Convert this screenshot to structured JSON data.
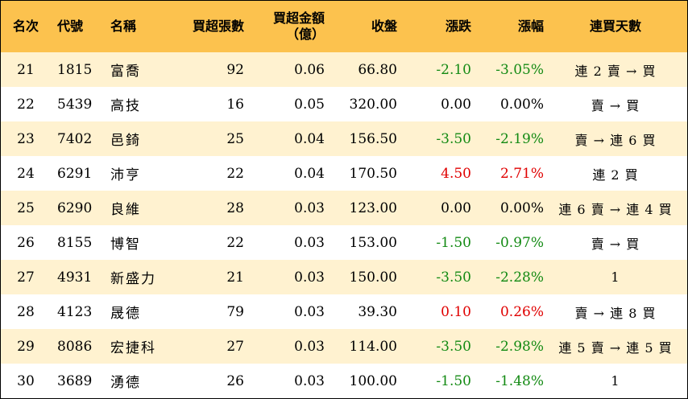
{
  "headers": {
    "rank": "名次",
    "code": "代號",
    "name": "名稱",
    "vol": "買超張數",
    "amt_line1": "買超金額",
    "amt_line2": "（億）",
    "close": "收盤",
    "chg": "漲跌",
    "pct": "漲幅",
    "days": "連買天數"
  },
  "colors": {
    "header_bg": "#fcc24e",
    "odd_row_bg": "#fff2d0",
    "up": "#e00000",
    "down": "#138a13"
  },
  "rows": [
    {
      "rank": "21",
      "code": "1815",
      "name": "富喬",
      "vol": "92",
      "amt": "0.06",
      "close": "66.80",
      "chg": "-2.10",
      "pct": "-3.05%",
      "days": "連 2 賣 → 買",
      "dir": "down"
    },
    {
      "rank": "22",
      "code": "5439",
      "name": "高技",
      "vol": "16",
      "amt": "0.05",
      "close": "320.00",
      "chg": "0.00",
      "pct": "0.00%",
      "days": "賣 → 買",
      "dir": "flat"
    },
    {
      "rank": "23",
      "code": "7402",
      "name": "邑錡",
      "vol": "25",
      "amt": "0.04",
      "close": "156.50",
      "chg": "-3.50",
      "pct": "-2.19%",
      "days": "賣 → 連 6 買",
      "dir": "down"
    },
    {
      "rank": "24",
      "code": "6291",
      "name": "沛亨",
      "vol": "22",
      "amt": "0.04",
      "close": "170.50",
      "chg": "4.50",
      "pct": "2.71%",
      "days": "連 2 買",
      "dir": "up"
    },
    {
      "rank": "25",
      "code": "6290",
      "name": "良維",
      "vol": "28",
      "amt": "0.03",
      "close": "123.00",
      "chg": "0.00",
      "pct": "0.00%",
      "days": "連 6 賣 → 連 4 買",
      "dir": "flat"
    },
    {
      "rank": "26",
      "code": "8155",
      "name": "博智",
      "vol": "22",
      "amt": "0.03",
      "close": "153.00",
      "chg": "-1.50",
      "pct": "-0.97%",
      "days": "賣 → 買",
      "dir": "down"
    },
    {
      "rank": "27",
      "code": "4931",
      "name": "新盛力",
      "vol": "21",
      "amt": "0.03",
      "close": "150.00",
      "chg": "-3.50",
      "pct": "-2.28%",
      "days": "1",
      "dir": "down"
    },
    {
      "rank": "28",
      "code": "4123",
      "name": "晟德",
      "vol": "79",
      "amt": "0.03",
      "close": "39.30",
      "chg": "0.10",
      "pct": "0.26%",
      "days": "賣 → 連 8 買",
      "dir": "up"
    },
    {
      "rank": "29",
      "code": "8086",
      "name": "宏捷科",
      "vol": "27",
      "amt": "0.03",
      "close": "114.00",
      "chg": "-3.50",
      "pct": "-2.98%",
      "days": "連 5 賣 → 連 5 買",
      "dir": "down"
    },
    {
      "rank": "30",
      "code": "3689",
      "name": "湧德",
      "vol": "26",
      "amt": "0.03",
      "close": "100.00",
      "chg": "-1.50",
      "pct": "-1.48%",
      "days": "1",
      "dir": "down"
    }
  ]
}
